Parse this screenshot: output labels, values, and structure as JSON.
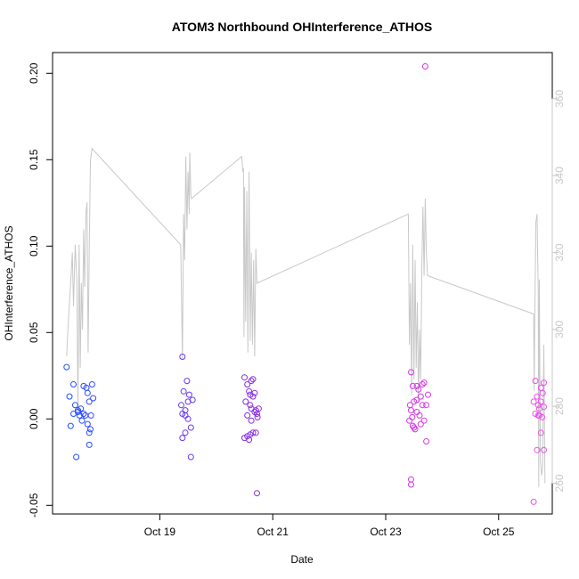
{
  "chart_data": {
    "type": "scatter",
    "title": "ATOM3 Northbound OHInterference_ATHOS",
    "xlabel": "Date",
    "ylabel": "OHInterference_ATHOS",
    "x_unit": "days since Oct 17 00:00",
    "xlim": [
      17.1,
      25.95
    ],
    "ylim": [
      -0.055,
      0.212
    ],
    "y2lim": [
      252,
      372
    ],
    "x_ticks": [
      {
        "value": 19,
        "label": "Oct 19"
      },
      {
        "value": 21,
        "label": "Oct 21"
      },
      {
        "value": 23,
        "label": "Oct 23"
      },
      {
        "value": 25,
        "label": "Oct 25"
      }
    ],
    "y_ticks": [
      {
        "value": -0.05,
        "label": "-0.05"
      },
      {
        "value": 0.0,
        "label": "0.00"
      },
      {
        "value": 0.05,
        "label": "0.05"
      },
      {
        "value": 0.1,
        "label": "0.10"
      },
      {
        "value": 0.15,
        "label": "0.15"
      },
      {
        "value": 0.2,
        "label": "0.20"
      }
    ],
    "y2_ticks": [
      {
        "value": 260,
        "label": "260"
      },
      {
        "value": 280,
        "label": "280"
      },
      {
        "value": 300,
        "label": "300"
      },
      {
        "value": 320,
        "label": "320"
      },
      {
        "value": 340,
        "label": "340"
      },
      {
        "value": 360,
        "label": "360"
      }
    ],
    "grid": false,
    "colors": {
      "line": "#c8c8c8",
      "gradient": [
        "#1f4fff",
        "#5a3cff",
        "#8a2be2",
        "#b82ce0",
        "#e23ce6",
        "#f050f0"
      ]
    },
    "points": [
      [
        17.35,
        0.03
      ],
      [
        17.42,
        -0.004
      ],
      [
        17.4,
        0.013
      ],
      [
        17.47,
        0.003
      ],
      [
        17.5,
        0.008
      ],
      [
        17.47,
        0.02
      ],
      [
        17.52,
        -0.022
      ],
      [
        17.55,
        0.005
      ],
      [
        17.58,
        0.002
      ],
      [
        17.6,
        0.006
      ],
      [
        17.55,
        0.004
      ],
      [
        17.62,
        -0.001
      ],
      [
        17.65,
        0.019
      ],
      [
        17.65,
        0.003
      ],
      [
        17.7,
        0.018
      ],
      [
        17.68,
        0.002
      ],
      [
        17.72,
        -0.003
      ],
      [
        17.75,
        -0.008
      ],
      [
        17.72,
        0.015
      ],
      [
        17.75,
        0.01
      ],
      [
        17.78,
        0.002
      ],
      [
        17.8,
        0.02
      ],
      [
        17.77,
        -0.006
      ],
      [
        17.82,
        0.012
      ],
      [
        17.75,
        -0.015
      ],
      [
        19.4,
        0.036
      ],
      [
        19.42,
        0.016
      ],
      [
        19.38,
        0.008
      ],
      [
        19.45,
        0.005
      ],
      [
        19.45,
        -0.008
      ],
      [
        19.48,
        0.022
      ],
      [
        19.5,
        0.01
      ],
      [
        19.4,
        0.003
      ],
      [
        19.4,
        -0.011
      ],
      [
        19.5,
        0.0
      ],
      [
        19.55,
        -0.005
      ],
      [
        19.55,
        -0.022
      ],
      [
        19.58,
        0.011
      ],
      [
        19.52,
        0.014
      ],
      [
        19.45,
        0.002
      ],
      [
        20.5,
        0.024
      ],
      [
        20.52,
        0.01
      ],
      [
        20.55,
        0.02
      ],
      [
        20.58,
        0.016
      ],
      [
        20.6,
        0.014
      ],
      [
        20.62,
        0.022
      ],
      [
        20.55,
        -0.01
      ],
      [
        20.5,
        -0.011
      ],
      [
        20.58,
        -0.012
      ],
      [
        20.62,
        0.006
      ],
      [
        20.65,
        0.023
      ],
      [
        20.65,
        -0.008
      ],
      [
        20.68,
        0.015
      ],
      [
        20.7,
        0.005
      ],
      [
        20.72,
        0.003
      ],
      [
        20.72,
        -0.043
      ],
      [
        20.7,
        -0.008
      ],
      [
        20.75,
        0.006
      ],
      [
        20.6,
        -0.009
      ],
      [
        20.62,
        -0.001
      ],
      [
        20.55,
        0.002
      ],
      [
        20.68,
        0.004
      ],
      [
        20.73,
        0.001
      ],
      [
        20.65,
        0.013
      ],
      [
        20.6,
        0.008
      ],
      [
        23.45,
        0.027
      ],
      [
        23.43,
        0.008
      ],
      [
        23.45,
        0.005
      ],
      [
        23.47,
        0.001
      ],
      [
        23.42,
        -0.001
      ],
      [
        23.48,
        0.019
      ],
      [
        23.5,
        0.01
      ],
      [
        23.5,
        -0.005
      ],
      [
        23.52,
        -0.006
      ],
      [
        23.55,
        0.019
      ],
      [
        23.55,
        0.004
      ],
      [
        23.48,
        -0.004
      ],
      [
        23.45,
        -0.035
      ],
      [
        23.45,
        -0.038
      ],
      [
        23.62,
        0.013
      ],
      [
        23.65,
        0.02
      ],
      [
        23.68,
        0.021
      ],
      [
        23.7,
        0.204
      ],
      [
        23.72,
        -0.013
      ],
      [
        23.75,
        0.014
      ],
      [
        23.68,
        -0.001
      ],
      [
        23.65,
        0.008
      ],
      [
        23.6,
        0.002
      ],
      [
        23.62,
        -0.003
      ],
      [
        23.58,
        0.017
      ],
      [
        23.72,
        0.008
      ],
      [
        23.55,
        0.011
      ],
      [
        25.62,
        0.01
      ],
      [
        25.65,
        0.022
      ],
      [
        25.68,
        0.013
      ],
      [
        25.7,
        0.002
      ],
      [
        25.72,
        0.006
      ],
      [
        25.75,
        0.01
      ],
      [
        25.75,
        0.018
      ],
      [
        25.78,
        0.015
      ],
      [
        25.8,
        0.021
      ],
      [
        25.8,
        0.007
      ],
      [
        25.68,
        -0.018
      ],
      [
        25.8,
        -0.018
      ],
      [
        25.75,
        -0.008
      ],
      [
        25.72,
        0.002
      ],
      [
        25.77,
        0.001
      ],
      [
        25.65,
        0.003
      ],
      [
        25.62,
        -0.048
      ],
      [
        25.7,
        0.008
      ]
    ],
    "line_y2": [
      [
        17.35,
        293
      ],
      [
        17.38,
        302
      ],
      [
        17.42,
        312
      ],
      [
        17.45,
        320
      ],
      [
        17.47,
        306
      ],
      [
        17.5,
        322
      ],
      [
        17.53,
        313
      ],
      [
        17.55,
        278
      ],
      [
        17.57,
        322
      ],
      [
        17.59,
        290
      ],
      [
        17.61,
        312
      ],
      [
        17.63,
        300
      ],
      [
        17.65,
        326
      ],
      [
        17.67,
        311
      ],
      [
        17.69,
        330
      ],
      [
        17.71,
        333
      ],
      [
        17.73,
        294
      ],
      [
        17.75,
        321
      ],
      [
        17.77,
        344
      ],
      [
        17.8,
        347
      ],
      [
        19.37,
        322
      ],
      [
        19.4,
        292
      ],
      [
        19.42,
        330
      ],
      [
        19.44,
        318
      ],
      [
        19.46,
        345
      ],
      [
        19.48,
        326
      ],
      [
        19.5,
        341
      ],
      [
        19.52,
        330
      ],
      [
        19.53,
        346
      ],
      [
        19.55,
        335
      ],
      [
        19.56,
        334
      ],
      [
        20.45,
        345
      ],
      [
        20.47,
        341
      ],
      [
        20.48,
        342
      ],
      [
        20.49,
        298
      ],
      [
        20.5,
        337
      ],
      [
        20.52,
        302
      ],
      [
        20.54,
        336
      ],
      [
        20.56,
        294
      ],
      [
        20.58,
        341
      ],
      [
        20.6,
        297
      ],
      [
        20.62,
        320
      ],
      [
        20.64,
        296
      ],
      [
        20.66,
        318
      ],
      [
        20.68,
        293
      ],
      [
        20.7,
        321
      ],
      [
        20.72,
        312
      ],
      [
        23.4,
        330
      ],
      [
        23.42,
        296
      ],
      [
        23.44,
        312
      ],
      [
        23.46,
        283
      ],
      [
        23.48,
        322
      ],
      [
        23.5,
        287
      ],
      [
        23.52,
        318
      ],
      [
        23.54,
        290
      ],
      [
        23.56,
        307
      ],
      [
        23.58,
        281
      ],
      [
        23.6,
        300
      ],
      [
        23.62,
        287
      ],
      [
        23.64,
        317
      ],
      [
        23.66,
        332
      ],
      [
        23.68,
        314
      ],
      [
        23.7,
        334
      ],
      [
        23.72,
        320
      ],
      [
        23.74,
        314
      ],
      [
        25.62,
        304
      ],
      [
        25.63,
        284
      ],
      [
        25.64,
        302
      ],
      [
        25.66,
        328
      ],
      [
        25.68,
        330
      ],
      [
        25.7,
        310
      ],
      [
        25.71,
        259
      ],
      [
        25.72,
        313
      ],
      [
        25.74,
        266
      ],
      [
        25.76,
        262
      ],
      [
        25.78,
        264
      ],
      [
        25.8,
        296
      ],
      [
        25.82,
        260
      ]
    ]
  }
}
